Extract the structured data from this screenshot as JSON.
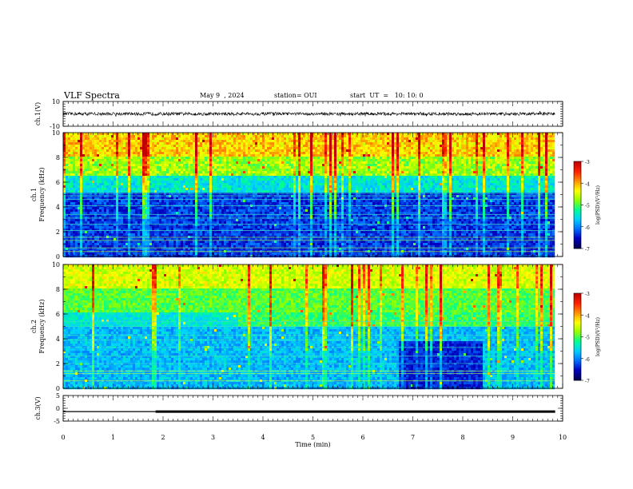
{
  "header": {
    "title": "VLF Spectra",
    "date": "May 9  , 2024",
    "station": "station= OUI",
    "start": "start  UT  =   10: 10: 0"
  },
  "colors": {
    "colormap": [
      "#000050",
      "#0000c0",
      "#0070ff",
      "#00d0ff",
      "#00ff90",
      "#90ff00",
      "#ffff00",
      "#ff9000",
      "#ff2000",
      "#c00000"
    ],
    "trace": "#000000"
  },
  "chart_data": [
    {
      "type": "line",
      "name": "ch1-waveform",
      "ylabel": "ch.1(V)",
      "ylim": [
        -10,
        10
      ],
      "yticks": [
        10,
        -10
      ],
      "x_range_min": [
        0,
        10
      ],
      "description_level": "noise band centred near 0 V, amplitude about ±1.5 V"
    },
    {
      "type": "heatmap",
      "name": "ch1-spectrogram",
      "ylabel_line1": "ch.1",
      "ylabel_line2": "Frequency (kHz)",
      "ylim": [
        0,
        10
      ],
      "yticks": [
        0,
        2,
        4,
        6,
        8,
        10
      ],
      "colorbar": {
        "label": "log(PSD)(V²/Hz)",
        "ticks": [
          -3,
          -4,
          -5,
          -6,
          -7
        ],
        "range": [
          -7,
          -3
        ]
      }
    },
    {
      "type": "heatmap",
      "name": "ch2-spectrogram",
      "ylabel_line1": "ch.2",
      "ylabel_line2": "Frequency (kHz)",
      "ylim": [
        0,
        10
      ],
      "yticks": [
        0,
        2,
        4,
        6,
        8,
        10
      ],
      "colorbar": {
        "label": "log(PSD)(V²/Hz)",
        "ticks": [
          -3,
          -4,
          -5,
          -6,
          -7
        ],
        "range": [
          -7,
          -3
        ]
      }
    },
    {
      "type": "line",
      "name": "ch3-signal",
      "ylabel": "ch.3(V)",
      "ylim": [
        -5,
        5
      ],
      "yticks": [
        5,
        0,
        -5
      ],
      "segments": [
        {
          "x": [
            0,
            1.85
          ],
          "y": -1.3,
          "weight": "thin"
        },
        {
          "x": [
            1.85,
            9.85
          ],
          "y": -1.3,
          "weight": "thick"
        }
      ]
    }
  ],
  "x_axis": {
    "label": "Time  (min)",
    "ticks": [
      "0",
      "1",
      "2",
      "3",
      "4",
      "5",
      "6",
      "7",
      "8",
      "9",
      "10"
    ],
    "range": [
      0,
      10
    ]
  }
}
